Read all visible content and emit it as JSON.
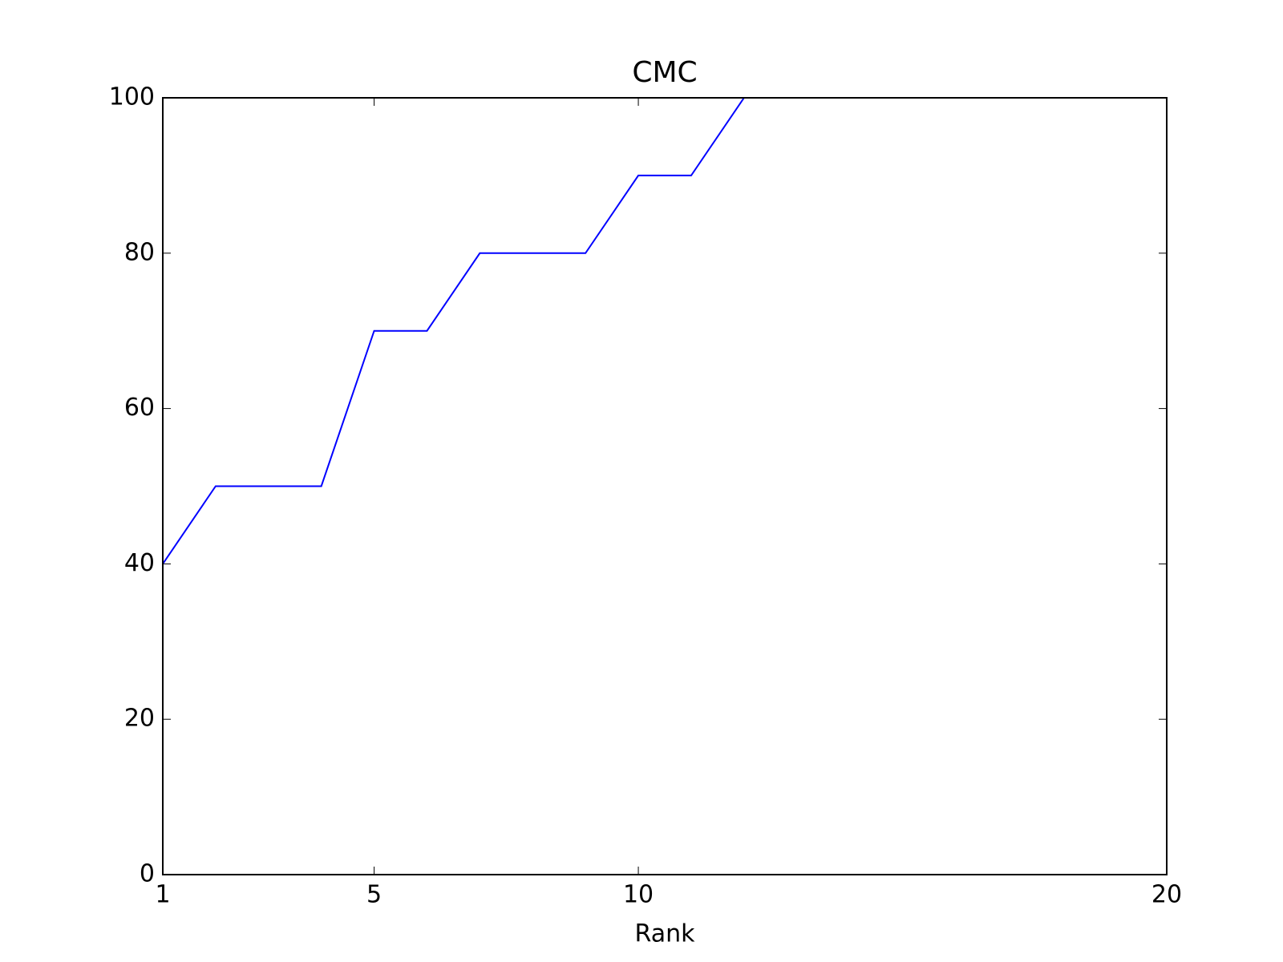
{
  "chart_data": {
    "type": "line",
    "title": "CMC",
    "x_label": "Rank",
    "x": [
      1,
      2,
      3,
      4,
      5,
      6,
      7,
      8,
      9,
      10,
      11,
      12,
      13,
      14,
      15,
      16,
      17,
      18,
      19,
      20
    ],
    "series": [
      {
        "color": "#0000ff",
        "values": [
          40,
          50,
          50,
          50,
          70,
          70,
          80,
          80,
          80,
          90,
          90,
          100,
          100,
          100,
          100,
          100,
          100,
          100,
          100,
          100
        ]
      }
    ],
    "xlim": [
      1,
      20
    ],
    "xticks": [
      1,
      5,
      10,
      20
    ],
    "ylim": [
      0,
      100
    ],
    "yticks": [
      0,
      20,
      40,
      60,
      80,
      100
    ],
    "grid": false
  }
}
